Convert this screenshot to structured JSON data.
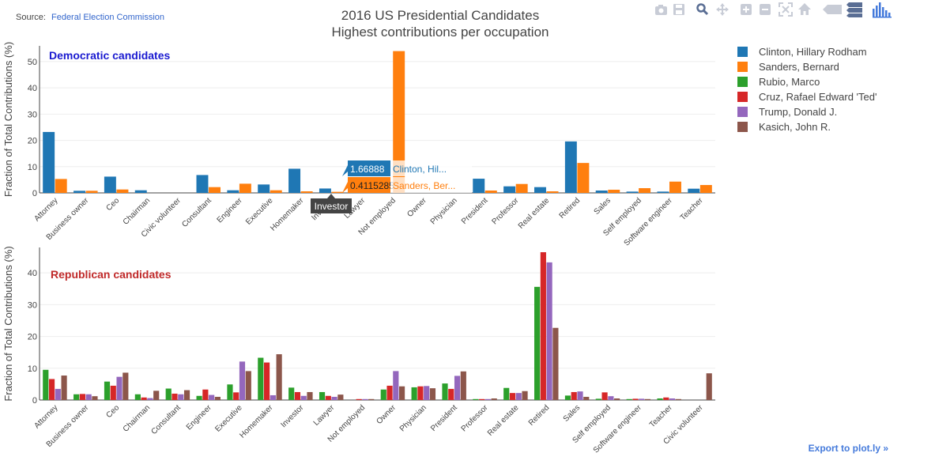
{
  "source": {
    "label": "Source:",
    "link_text": "Federal Election Commission"
  },
  "title_line1": "2016 US Presidential Candidates",
  "title_line2": "Highest contributions per occupation",
  "export_text": "Export to plot.ly »",
  "modebar": [
    {
      "name": "camera-icon"
    },
    {
      "name": "save-icon"
    },
    {
      "name": "zoom-icon"
    },
    {
      "name": "pan-icon"
    },
    {
      "name": "zoom-in-icon"
    },
    {
      "name": "zoom-out-icon"
    },
    {
      "name": "autoscale-icon"
    },
    {
      "name": "home-icon"
    },
    {
      "name": "hover-closest-icon"
    },
    {
      "name": "hover-compare-icon"
    },
    {
      "name": "plotly-logo-icon"
    }
  ],
  "legend": [
    {
      "name": "Clinton, Hillary Rodham",
      "color": "#1f77b4"
    },
    {
      "name": "Sanders, Bernard",
      "color": "#ff7f0e"
    },
    {
      "name": "Rubio, Marco",
      "color": "#2ca02c"
    },
    {
      "name": "Cruz, Rafael Edward 'Ted'",
      "color": "#d62728"
    },
    {
      "name": "Trump, Donald J.",
      "color": "#9467bd"
    },
    {
      "name": "Kasich, John R.",
      "color": "#8c564b"
    }
  ],
  "tooltip": {
    "category": "Investor",
    "entries": [
      {
        "value": "1.66888",
        "label": "Clinton, Hil...",
        "color": "#1f77b4"
      },
      {
        "value": "0.4115285",
        "label": "Sanders, Ber...",
        "color": "#ff7f0e"
      }
    ]
  },
  "chart_data": [
    {
      "type": "bar",
      "title": "Democratic candidates",
      "ylabel": "Fraction of Total Contributions (%)",
      "ylim": [
        0,
        56
      ],
      "yticks": [
        0,
        10,
        20,
        30,
        40,
        50
      ],
      "categories": [
        "Attorney",
        "Business owner",
        "Ceo",
        "Chairman",
        "Civic volunteer",
        "Consultant",
        "Engineer",
        "Executive",
        "Homemaker",
        "Investor",
        "Lawyer",
        "Not employed",
        "Owner",
        "Physician",
        "President",
        "Professor",
        "Real estate",
        "Retired",
        "Sales",
        "Self employed",
        "Software engineer",
        "Teacher"
      ],
      "series": [
        {
          "name": "Clinton, Hillary Rodham",
          "values": [
            23.2,
            0.8,
            6.2,
            1.0,
            0,
            6.8,
            1.0,
            3.2,
            9.2,
            1.67,
            0,
            0,
            0,
            0,
            5.4,
            2.5,
            2.2,
            19.6,
            0.9,
            0.5,
            0.5,
            1.6
          ]
        },
        {
          "name": "Sanders, Bernard",
          "values": [
            5.3,
            0.8,
            1.3,
            0,
            0,
            2.2,
            3.5,
            1.0,
            0.6,
            0.41,
            0,
            54.0,
            0,
            0,
            0.9,
            3.4,
            0.6,
            11.4,
            1.2,
            1.8,
            4.3,
            3.0
          ]
        }
      ]
    },
    {
      "type": "bar",
      "title": "Republican candidates",
      "ylabel": "Fraction of Total Contributions (%)",
      "ylim": [
        0,
        48
      ],
      "yticks": [
        0,
        10,
        20,
        30,
        40
      ],
      "categories": [
        "Attorney",
        "Business owner",
        "Ceo",
        "Chairman",
        "Consultant",
        "Engineer",
        "Executive",
        "Homemaker",
        "Investor",
        "Lawyer",
        "Not employed",
        "Owner",
        "Physician",
        "President",
        "Professor",
        "Real estate",
        "Retired",
        "Sales",
        "Self employed",
        "Software engineer",
        "Teacher",
        "Civic volunteer"
      ],
      "series": [
        {
          "name": "Rubio, Marco",
          "values": [
            9.5,
            1.8,
            5.8,
            1.8,
            3.6,
            1.3,
            4.9,
            13.3,
            3.9,
            2.5,
            0,
            3.3,
            4.0,
            5.2,
            0.3,
            3.8,
            35.6,
            1.4,
            0.4,
            0.3,
            0.5,
            0
          ]
        },
        {
          "name": "Cruz, Rafael Edward 'Ted'",
          "values": [
            6.6,
            1.9,
            4.5,
            0.8,
            2.0,
            3.3,
            2.4,
            11.8,
            2.5,
            1.3,
            0.3,
            4.5,
            4.3,
            3.5,
            0.3,
            2.2,
            46.5,
            2.5,
            2.4,
            0.4,
            0.8,
            0
          ]
        },
        {
          "name": "Trump, Donald J.",
          "values": [
            3.5,
            1.8,
            7.3,
            0.6,
            1.8,
            1.6,
            12.1,
            1.5,
            1.3,
            1.0,
            0.3,
            9.1,
            4.4,
            7.6,
            0.3,
            2.2,
            43.3,
            2.7,
            1.2,
            0.4,
            0.5,
            0
          ]
        },
        {
          "name": "Kasich, John R.",
          "values": [
            7.7,
            1.2,
            8.6,
            2.9,
            3.1,
            1.0,
            9.1,
            14.4,
            2.5,
            1.7,
            0.3,
            4.3,
            3.7,
            9.0,
            0.5,
            2.8,
            22.7,
            1.0,
            0.5,
            0.3,
            0.3,
            8.4
          ]
        }
      ]
    }
  ]
}
